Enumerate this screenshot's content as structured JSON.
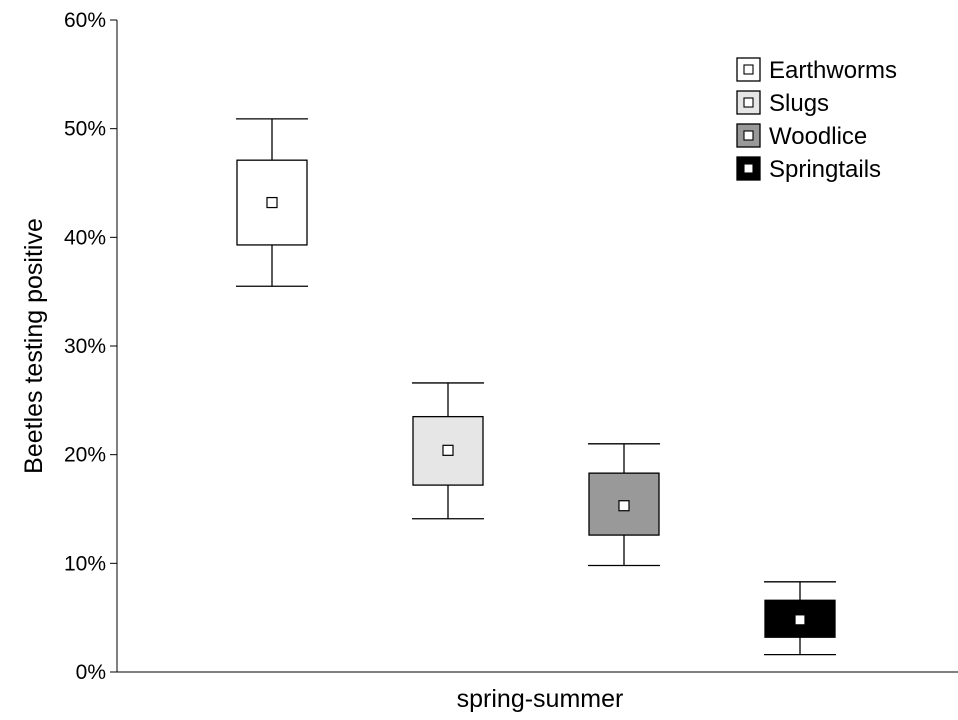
{
  "chart_data": {
    "type": "box",
    "title": "",
    "xlabel": "spring-summer",
    "ylabel": "Beetles testing positive",
    "ylim": [
      0,
      60
    ],
    "yticks": [
      "0%",
      "10%",
      "20%",
      "30%",
      "40%",
      "50%",
      "60%"
    ],
    "grid": false,
    "legend": "top-right",
    "series": [
      {
        "name": "Earthworms",
        "color": "#ffffff",
        "median": 43.2,
        "box_low": 39.3,
        "box_high": 47.1,
        "whisker_low": 35.5,
        "whisker_high": 50.9
      },
      {
        "name": "Slugs",
        "color": "#e6e6e6",
        "median": 20.4,
        "box_low": 17.2,
        "box_high": 23.5,
        "whisker_low": 14.1,
        "whisker_high": 26.6
      },
      {
        "name": "Woodlice",
        "color": "#999999",
        "median": 15.3,
        "box_low": 12.6,
        "box_high": 18.3,
        "whisker_low": 9.8,
        "whisker_high": 21.0
      },
      {
        "name": "Springtails",
        "color": "#000000",
        "median": 4.8,
        "box_low": 3.2,
        "box_high": 6.6,
        "whisker_low": 1.6,
        "whisker_high": 8.3
      }
    ]
  }
}
